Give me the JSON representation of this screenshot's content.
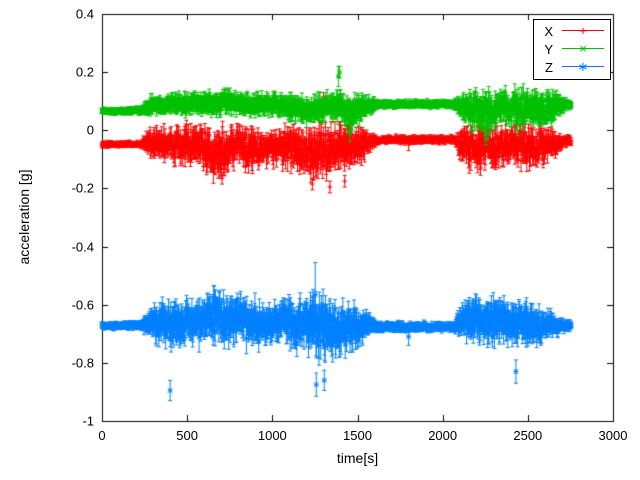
{
  "chart_data": {
    "type": "scatter",
    "style": "points-with-errorbars",
    "title": "",
    "xlabel": "time[s]",
    "ylabel": "acceleration [g]",
    "xlim": [
      0,
      3000
    ],
    "ylim": [
      -1,
      0.4
    ],
    "xtick_labels": [
      "0",
      "500",
      "1000",
      "1500",
      "2000",
      "2500",
      "3000"
    ],
    "ytick_labels": [
      "0.4",
      "0.2",
      "0",
      "-0.2",
      "-0.4",
      "-0.6",
      "-0.8",
      "-1"
    ],
    "grid": false,
    "legend_position": "top-right-inside",
    "t_start": 0,
    "t_end": 2755,
    "sample_step_s": 2,
    "series": [
      {
        "name": "X",
        "color": "#ff0000",
        "marker": "plus",
        "envelope": [
          [
            0,
            -0.048,
            0.006
          ],
          [
            230,
            -0.048,
            0.006
          ],
          [
            260,
            -0.04,
            0.025
          ],
          [
            320,
            -0.05,
            0.04
          ],
          [
            400,
            -0.045,
            0.035
          ],
          [
            480,
            -0.06,
            0.05
          ],
          [
            560,
            -0.05,
            0.045
          ],
          [
            640,
            -0.065,
            0.055
          ],
          [
            720,
            -0.075,
            0.06
          ],
          [
            800,
            -0.05,
            0.045
          ],
          [
            880,
            -0.06,
            0.05
          ],
          [
            960,
            -0.05,
            0.04
          ],
          [
            1040,
            -0.055,
            0.045
          ],
          [
            1120,
            -0.06,
            0.05
          ],
          [
            1200,
            -0.07,
            0.06
          ],
          [
            1280,
            -0.065,
            0.065
          ],
          [
            1360,
            -0.055,
            0.055
          ],
          [
            1440,
            -0.06,
            0.055
          ],
          [
            1520,
            -0.05,
            0.04
          ],
          [
            1580,
            -0.04,
            0.02
          ],
          [
            1620,
            -0.032,
            0.008
          ],
          [
            2070,
            -0.032,
            0.008
          ],
          [
            2110,
            -0.05,
            0.04
          ],
          [
            2180,
            -0.06,
            0.055
          ],
          [
            2260,
            -0.05,
            0.05
          ],
          [
            2340,
            -0.06,
            0.05
          ],
          [
            2420,
            -0.05,
            0.045
          ],
          [
            2500,
            -0.055,
            0.05
          ],
          [
            2580,
            -0.05,
            0.045
          ],
          [
            2660,
            -0.045,
            0.03
          ],
          [
            2710,
            -0.038,
            0.012
          ],
          [
            2755,
            -0.036,
            0.01
          ]
        ],
        "outliers": [
          [
            705,
            -0.165,
            0.02
          ],
          [
            1235,
            -0.185,
            0.02
          ],
          [
            1300,
            0.115,
            0.015
          ],
          [
            1338,
            -0.195,
            0.02
          ],
          [
            1425,
            -0.175,
            0.02
          ],
          [
            1800,
            -0.05,
            0.02
          ]
        ]
      },
      {
        "name": "Y",
        "color": "#00c000",
        "marker": "cross",
        "envelope": [
          [
            0,
            0.065,
            0.006
          ],
          [
            230,
            0.068,
            0.008
          ],
          [
            270,
            0.085,
            0.02
          ],
          [
            350,
            0.09,
            0.022
          ],
          [
            450,
            0.088,
            0.025
          ],
          [
            550,
            0.092,
            0.025
          ],
          [
            650,
            0.09,
            0.028
          ],
          [
            750,
            0.095,
            0.03
          ],
          [
            850,
            0.088,
            0.026
          ],
          [
            950,
            0.09,
            0.025
          ],
          [
            1050,
            0.085,
            0.028
          ],
          [
            1150,
            0.08,
            0.03
          ],
          [
            1250,
            0.07,
            0.035
          ],
          [
            1320,
            0.08,
            0.03
          ],
          [
            1400,
            0.085,
            0.035
          ],
          [
            1460,
            0.055,
            0.04
          ],
          [
            1520,
            0.075,
            0.03
          ],
          [
            1580,
            0.085,
            0.018
          ],
          [
            1620,
            0.09,
            0.008
          ],
          [
            2070,
            0.09,
            0.008
          ],
          [
            2110,
            0.08,
            0.03
          ],
          [
            2190,
            0.065,
            0.045
          ],
          [
            2270,
            0.055,
            0.05
          ],
          [
            2350,
            0.085,
            0.035
          ],
          [
            2430,
            0.07,
            0.045
          ],
          [
            2510,
            0.08,
            0.04
          ],
          [
            2590,
            0.075,
            0.04
          ],
          [
            2660,
            0.08,
            0.035
          ],
          [
            2715,
            0.088,
            0.012
          ],
          [
            2755,
            0.088,
            0.01
          ]
        ],
        "outliers": [
          [
            1388,
            0.185,
            0.035
          ],
          [
            1395,
            0.2,
            0.02
          ],
          [
            1455,
            -0.01,
            0.03
          ],
          [
            2255,
            -0.03,
            0.02
          ]
        ]
      },
      {
        "name": "Z",
        "color": "#0080ff",
        "marker": "asterisk",
        "envelope": [
          [
            0,
            -0.672,
            0.007
          ],
          [
            230,
            -0.672,
            0.009
          ],
          [
            270,
            -0.66,
            0.03
          ],
          [
            350,
            -0.665,
            0.05
          ],
          [
            420,
            -0.67,
            0.06
          ],
          [
            500,
            -0.66,
            0.05
          ],
          [
            580,
            -0.652,
            0.055
          ],
          [
            660,
            -0.645,
            0.06
          ],
          [
            740,
            -0.64,
            0.06
          ],
          [
            820,
            -0.648,
            0.06
          ],
          [
            900,
            -0.66,
            0.055
          ],
          [
            980,
            -0.665,
            0.05
          ],
          [
            1060,
            -0.658,
            0.05
          ],
          [
            1140,
            -0.668,
            0.06
          ],
          [
            1220,
            -0.66,
            0.075
          ],
          [
            1300,
            -0.675,
            0.075
          ],
          [
            1380,
            -0.68,
            0.065
          ],
          [
            1460,
            -0.672,
            0.055
          ],
          [
            1540,
            -0.67,
            0.04
          ],
          [
            1600,
            -0.674,
            0.015
          ],
          [
            1640,
            -0.676,
            0.01
          ],
          [
            2070,
            -0.676,
            0.01
          ],
          [
            2110,
            -0.66,
            0.04
          ],
          [
            2190,
            -0.652,
            0.055
          ],
          [
            2270,
            -0.648,
            0.06
          ],
          [
            2350,
            -0.655,
            0.05
          ],
          [
            2430,
            -0.665,
            0.05
          ],
          [
            2510,
            -0.668,
            0.05
          ],
          [
            2590,
            -0.67,
            0.04
          ],
          [
            2660,
            -0.672,
            0.025
          ],
          [
            2715,
            -0.672,
            0.012
          ],
          [
            2755,
            -0.672,
            0.01
          ]
        ],
        "outliers": [
          [
            400,
            -0.895,
            0.035
          ],
          [
            1252,
            -0.565,
            0.11
          ],
          [
            1258,
            -0.875,
            0.04
          ],
          [
            1305,
            -0.86,
            0.035
          ],
          [
            1800,
            -0.71,
            0.03
          ],
          [
            2430,
            -0.83,
            0.04
          ]
        ]
      }
    ]
  }
}
